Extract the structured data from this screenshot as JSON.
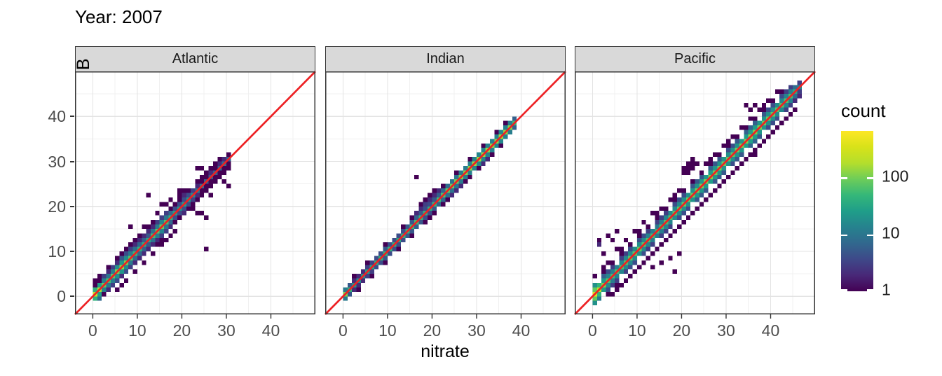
{
  "title": "Year: 2007",
  "axes": {
    "x_label": "nitrate",
    "y_label": "nitrate_CANYONB",
    "x_ticks": [
      0,
      10,
      20,
      30,
      40
    ],
    "y_ticks": [
      0,
      10,
      20,
      30,
      40
    ],
    "minor_ticks": [
      5,
      15,
      25,
      35,
      45
    ],
    "domain": [
      -4,
      50
    ]
  },
  "legend": {
    "title": "count",
    "tick_values": [
      100,
      10,
      1
    ],
    "tick_labels": [
      "100",
      "10",
      "1"
    ],
    "cmax": 650,
    "viridis": [
      "#440154",
      "#482878",
      "#3e4989",
      "#31688e",
      "#26828e",
      "#1f9e89",
      "#35b779",
      "#6dcd59",
      "#b4de2c",
      "#d8e219",
      "#fde725"
    ]
  },
  "identity_line": {
    "equation": "y = x",
    "color": "#ed2124"
  },
  "style_colors": {
    "strip_fill": "#d9d9d9",
    "panel_border": "#333333",
    "grid_major": "#e3e3e3",
    "grid_minor": "#f0f0f0",
    "tick_text": "#4d4d4d"
  },
  "chart_data": {
    "type": "heatmap",
    "subtype": "geom_bin2d",
    "binwidth": 1,
    "x_range": [
      -4,
      50
    ],
    "y_range": [
      -4,
      50
    ],
    "facets": [
      {
        "name": "Atlantic",
        "diag_start": 0,
        "diag_counts": [
          260,
          170,
          80,
          60,
          75,
          110,
          130,
          105,
          70,
          50,
          42,
          38,
          34,
          55,
          75,
          85,
          65,
          45,
          28,
          22,
          26,
          22,
          16,
          11,
          8,
          6,
          5,
          6,
          7,
          8,
          6
        ],
        "band_factor": 0.16,
        "band2_factor": 0.04,
        "band2_range": [
          1,
          19
        ],
        "scatter": [
          [
            0,
            2
          ],
          [
            1,
            3
          ],
          [
            2,
            4,
            2
          ],
          [
            3,
            5
          ],
          [
            3,
            6
          ],
          [
            4,
            6,
            2
          ],
          [
            5,
            7,
            2
          ],
          [
            5,
            8
          ],
          [
            6,
            8,
            3
          ],
          [
            6,
            9
          ],
          [
            7,
            9,
            2
          ],
          [
            7,
            10
          ],
          [
            8,
            10,
            2
          ],
          [
            8,
            11
          ],
          [
            9,
            11,
            2
          ],
          [
            9,
            12
          ],
          [
            10,
            12,
            2
          ],
          [
            10,
            13
          ],
          [
            11,
            13
          ],
          [
            12,
            14,
            2
          ],
          [
            12,
            15
          ],
          [
            13,
            15,
            2
          ],
          [
            13,
            16
          ],
          [
            14,
            16,
            2
          ],
          [
            15,
            17,
            2
          ],
          [
            16,
            18
          ],
          [
            17,
            19
          ],
          [
            8,
            15
          ],
          [
            11,
            15
          ],
          [
            12,
            22
          ],
          [
            14,
            18
          ],
          [
            15,
            20
          ],
          [
            16,
            20
          ],
          [
            17,
            21
          ],
          [
            18,
            20
          ],
          [
            19,
            22
          ],
          [
            19,
            23
          ],
          [
            20,
            22,
            2
          ],
          [
            20,
            23
          ],
          [
            21,
            23
          ],
          [
            23,
            25
          ],
          [
            23,
            28
          ],
          [
            24,
            28
          ],
          [
            24,
            26
          ],
          [
            25,
            27
          ],
          [
            26,
            27,
            2
          ],
          [
            26,
            28
          ],
          [
            27,
            29
          ],
          [
            28,
            29,
            2
          ],
          [
            28,
            30
          ],
          [
            29,
            30,
            2
          ],
          [
            0,
            3
          ],
          [
            1,
            4
          ],
          [
            2,
            0
          ],
          [
            3,
            1
          ],
          [
            4,
            2,
            2
          ],
          [
            5,
            1
          ],
          [
            5,
            3,
            2
          ],
          [
            6,
            2
          ],
          [
            6,
            4,
            2
          ],
          [
            7,
            3
          ],
          [
            7,
            5,
            2
          ],
          [
            8,
            6,
            2
          ],
          [
            9,
            5
          ],
          [
            9,
            7,
            2
          ],
          [
            10,
            8,
            2
          ],
          [
            11,
            7
          ],
          [
            11,
            9,
            2
          ],
          [
            12,
            10,
            2
          ],
          [
            13,
            9
          ],
          [
            13,
            11,
            2
          ],
          [
            14,
            11
          ],
          [
            14,
            12,
            2
          ],
          [
            15,
            11
          ],
          [
            15,
            12
          ],
          [
            15,
            13,
            3
          ],
          [
            16,
            12
          ],
          [
            16,
            14,
            2
          ],
          [
            17,
            13
          ],
          [
            17,
            15,
            2
          ],
          [
            18,
            14
          ],
          [
            18,
            16
          ],
          [
            19,
            17
          ],
          [
            20,
            18,
            2
          ],
          [
            21,
            19
          ],
          [
            22,
            19
          ],
          [
            22,
            20
          ],
          [
            23,
            18
          ],
          [
            23,
            21
          ],
          [
            24,
            18
          ],
          [
            24,
            22
          ],
          [
            25,
            10
          ],
          [
            25,
            17
          ],
          [
            25,
            23
          ],
          [
            26,
            22
          ],
          [
            26,
            24
          ],
          [
            27,
            25
          ],
          [
            28,
            26
          ],
          [
            29,
            25
          ],
          [
            29,
            27
          ],
          [
            30,
            24
          ],
          [
            30,
            28
          ]
        ]
      },
      {
        "name": "Indian",
        "diag_start": 0,
        "diag_counts": [
          110,
          45,
          22,
          18,
          22,
          28,
          32,
          38,
          42,
          46,
          44,
          40,
          38,
          42,
          46,
          52,
          56,
          48,
          42,
          38,
          46,
          56,
          66,
          76,
          88,
          98,
          108,
          118,
          130,
          140,
          150,
          140,
          130,
          125,
          135,
          145,
          130,
          115,
          55
        ],
        "band_factor": 0.1,
        "band2_factor": 0,
        "band2_range": [
          0,
          0
        ],
        "scatter": [
          [
            2,
            4
          ],
          [
            5,
            7
          ],
          [
            9,
            11
          ],
          [
            13,
            15
          ],
          [
            15,
            17
          ],
          [
            16,
            18,
            2
          ],
          [
            16,
            26
          ],
          [
            17,
            19,
            2
          ],
          [
            17,
            20
          ],
          [
            18,
            20,
            3
          ],
          [
            18,
            21
          ],
          [
            19,
            21,
            2
          ],
          [
            19,
            22
          ],
          [
            20,
            22,
            2
          ],
          [
            20,
            23
          ],
          [
            21,
            23,
            2
          ],
          [
            22,
            24
          ],
          [
            25,
            27
          ],
          [
            28,
            30
          ],
          [
            31,
            33
          ],
          [
            34,
            36
          ],
          [
            36,
            38
          ],
          [
            3,
            1
          ],
          [
            6,
            4
          ],
          [
            9,
            7
          ],
          [
            12,
            10
          ],
          [
            15,
            13
          ],
          [
            18,
            16
          ],
          [
            19,
            17
          ],
          [
            20,
            18
          ],
          [
            22,
            20
          ],
          [
            23,
            21
          ],
          [
            24,
            22,
            2
          ],
          [
            25,
            23,
            2
          ],
          [
            26,
            24,
            2
          ],
          [
            27,
            25
          ],
          [
            28,
            26
          ],
          [
            30,
            28
          ],
          [
            31,
            29,
            2
          ],
          [
            32,
            30,
            2
          ],
          [
            33,
            31
          ],
          [
            35,
            33
          ]
        ]
      },
      {
        "name": "Pacific",
        "diag_start": 0,
        "diag_counts": [
          380,
          210,
          110,
          70,
          55,
          58,
          62,
          66,
          72,
          76,
          82,
          72,
          62,
          56,
          52,
          56,
          62,
          66,
          72,
          76,
          82,
          86,
          92,
          96,
          102,
          106,
          112,
          102,
          96,
          92,
          86,
          82,
          92,
          102,
          112,
          122,
          112,
          102,
          92,
          86,
          82,
          76,
          70,
          64,
          58,
          36,
          14
        ],
        "band_factor": 0.22,
        "band2_factor": 0.05,
        "band2_range": [
          0,
          45
        ],
        "scatter": [
          [
            0,
            4
          ],
          [
            2,
            5
          ],
          [
            2,
            6
          ],
          [
            3,
            7
          ],
          [
            4,
            7
          ],
          [
            5,
            10
          ],
          [
            6,
            9
          ],
          [
            6,
            10
          ],
          [
            7,
            12
          ],
          [
            8,
            11
          ],
          [
            9,
            14
          ],
          [
            10,
            13
          ],
          [
            10,
            14
          ],
          [
            11,
            16
          ],
          [
            12,
            15
          ],
          [
            13,
            18
          ],
          [
            14,
            17
          ],
          [
            14,
            18
          ],
          [
            15,
            19
          ],
          [
            16,
            19
          ],
          [
            17,
            21
          ],
          [
            18,
            21
          ],
          [
            18,
            22
          ],
          [
            19,
            23
          ],
          [
            20,
            23
          ],
          [
            21,
            27
          ],
          [
            20,
            27
          ],
          [
            20,
            28
          ],
          [
            21,
            28
          ],
          [
            21,
            29
          ],
          [
            22,
            28
          ],
          [
            22,
            29
          ],
          [
            22,
            30
          ],
          [
            23,
            29
          ],
          [
            22,
            25
          ],
          [
            24,
            27
          ],
          [
            25,
            29
          ],
          [
            26,
            29
          ],
          [
            26,
            30
          ],
          [
            27,
            31
          ],
          [
            28,
            31
          ],
          [
            29,
            33
          ],
          [
            30,
            33
          ],
          [
            30,
            34
          ],
          [
            31,
            35
          ],
          [
            32,
            35
          ],
          [
            33,
            37
          ],
          [
            34,
            37
          ],
          [
            34,
            42
          ],
          [
            35,
            41
          ],
          [
            36,
            42
          ],
          [
            35,
            39
          ],
          [
            36,
            39
          ],
          [
            37,
            41
          ],
          [
            38,
            41
          ],
          [
            38,
            42
          ],
          [
            39,
            43
          ],
          [
            40,
            43
          ],
          [
            41,
            45
          ],
          [
            42,
            45
          ],
          [
            43,
            45,
            2
          ],
          [
            44,
            46,
            2
          ],
          [
            1,
            12
          ],
          [
            3,
            13
          ],
          [
            5,
            14
          ],
          [
            2,
            9
          ],
          [
            1,
            11,
            2
          ],
          [
            4,
            12
          ],
          [
            3,
            0
          ],
          [
            4,
            0
          ],
          [
            5,
            1
          ],
          [
            5,
            2
          ],
          [
            6,
            2
          ],
          [
            7,
            3
          ],
          [
            8,
            4
          ],
          [
            9,
            5
          ],
          [
            10,
            6
          ],
          [
            11,
            7
          ],
          [
            12,
            8
          ],
          [
            13,
            6
          ],
          [
            13,
            9
          ],
          [
            14,
            10
          ],
          [
            15,
            7
          ],
          [
            15,
            11
          ],
          [
            16,
            12
          ],
          [
            17,
            8
          ],
          [
            17,
            13
          ],
          [
            18,
            5
          ],
          [
            18,
            14
          ],
          [
            19,
            9
          ],
          [
            19,
            15
          ],
          [
            20,
            16
          ],
          [
            21,
            17
          ],
          [
            22,
            18
          ],
          [
            23,
            19
          ],
          [
            24,
            20
          ],
          [
            25,
            21
          ],
          [
            26,
            22
          ],
          [
            27,
            23
          ],
          [
            28,
            24
          ],
          [
            29,
            25
          ],
          [
            30,
            26
          ],
          [
            31,
            27
          ],
          [
            32,
            28
          ],
          [
            33,
            29
          ],
          [
            34,
            30
          ],
          [
            35,
            31
          ],
          [
            36,
            31
          ],
          [
            36,
            32
          ],
          [
            37,
            33
          ],
          [
            38,
            34
          ],
          [
            39,
            35
          ],
          [
            40,
            36
          ],
          [
            41,
            37
          ],
          [
            42,
            38
          ],
          [
            43,
            39
          ],
          [
            44,
            40
          ],
          [
            45,
            41
          ],
          [
            44,
            42,
            2
          ],
          [
            45,
            43,
            2
          ],
          [
            46,
            44,
            2
          ],
          [
            46,
            45,
            2
          ],
          [
            45,
            44,
            3
          ],
          [
            44,
            43,
            2
          ]
        ]
      }
    ]
  }
}
